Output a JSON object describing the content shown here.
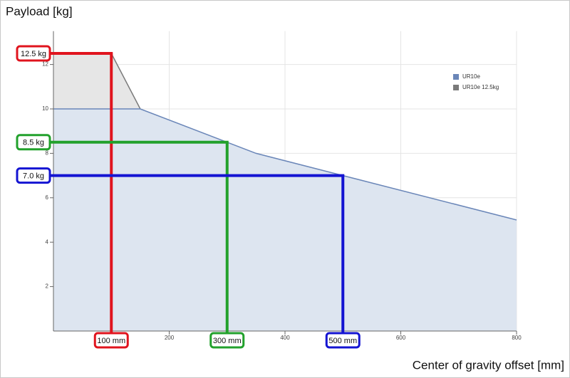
{
  "chart_data": {
    "type": "area",
    "y_label": "Payload [kg]",
    "x_label": "Center of gravity offset [mm]",
    "xlim": [
      0,
      800
    ],
    "xticks": [
      200,
      400,
      600,
      800
    ],
    "ylim": [
      0,
      13.5
    ],
    "yticks": [
      2,
      4,
      6,
      8,
      10,
      12
    ],
    "grid": true,
    "legend": "top-right",
    "series": [
      {
        "name": "UR10e 12.5kg",
        "color": "#7a7a7a",
        "fill": "#e6e6e6",
        "x": [
          0,
          100,
          150
        ],
        "values": [
          12.5,
          12.5,
          10
        ]
      },
      {
        "name": "UR10e",
        "color": "#6a86b8",
        "fill": "#dde5f0",
        "x": [
          0,
          150,
          350,
          500,
          800
        ],
        "values": [
          10,
          10,
          8,
          7,
          5
        ]
      }
    ],
    "annotations": [
      {
        "x": 100,
        "y": 12.5,
        "x_label": "100 mm",
        "y_label": "12.5 kg",
        "color": "#e0141e"
      },
      {
        "x": 300,
        "y": 8.5,
        "x_label": "300 mm",
        "y_label": "8.5 kg",
        "color": "#22a12c"
      },
      {
        "x": 500,
        "y": 7,
        "x_label": "500 mm",
        "y_label": "7.0 kg",
        "color": "#1414d2"
      }
    ]
  }
}
